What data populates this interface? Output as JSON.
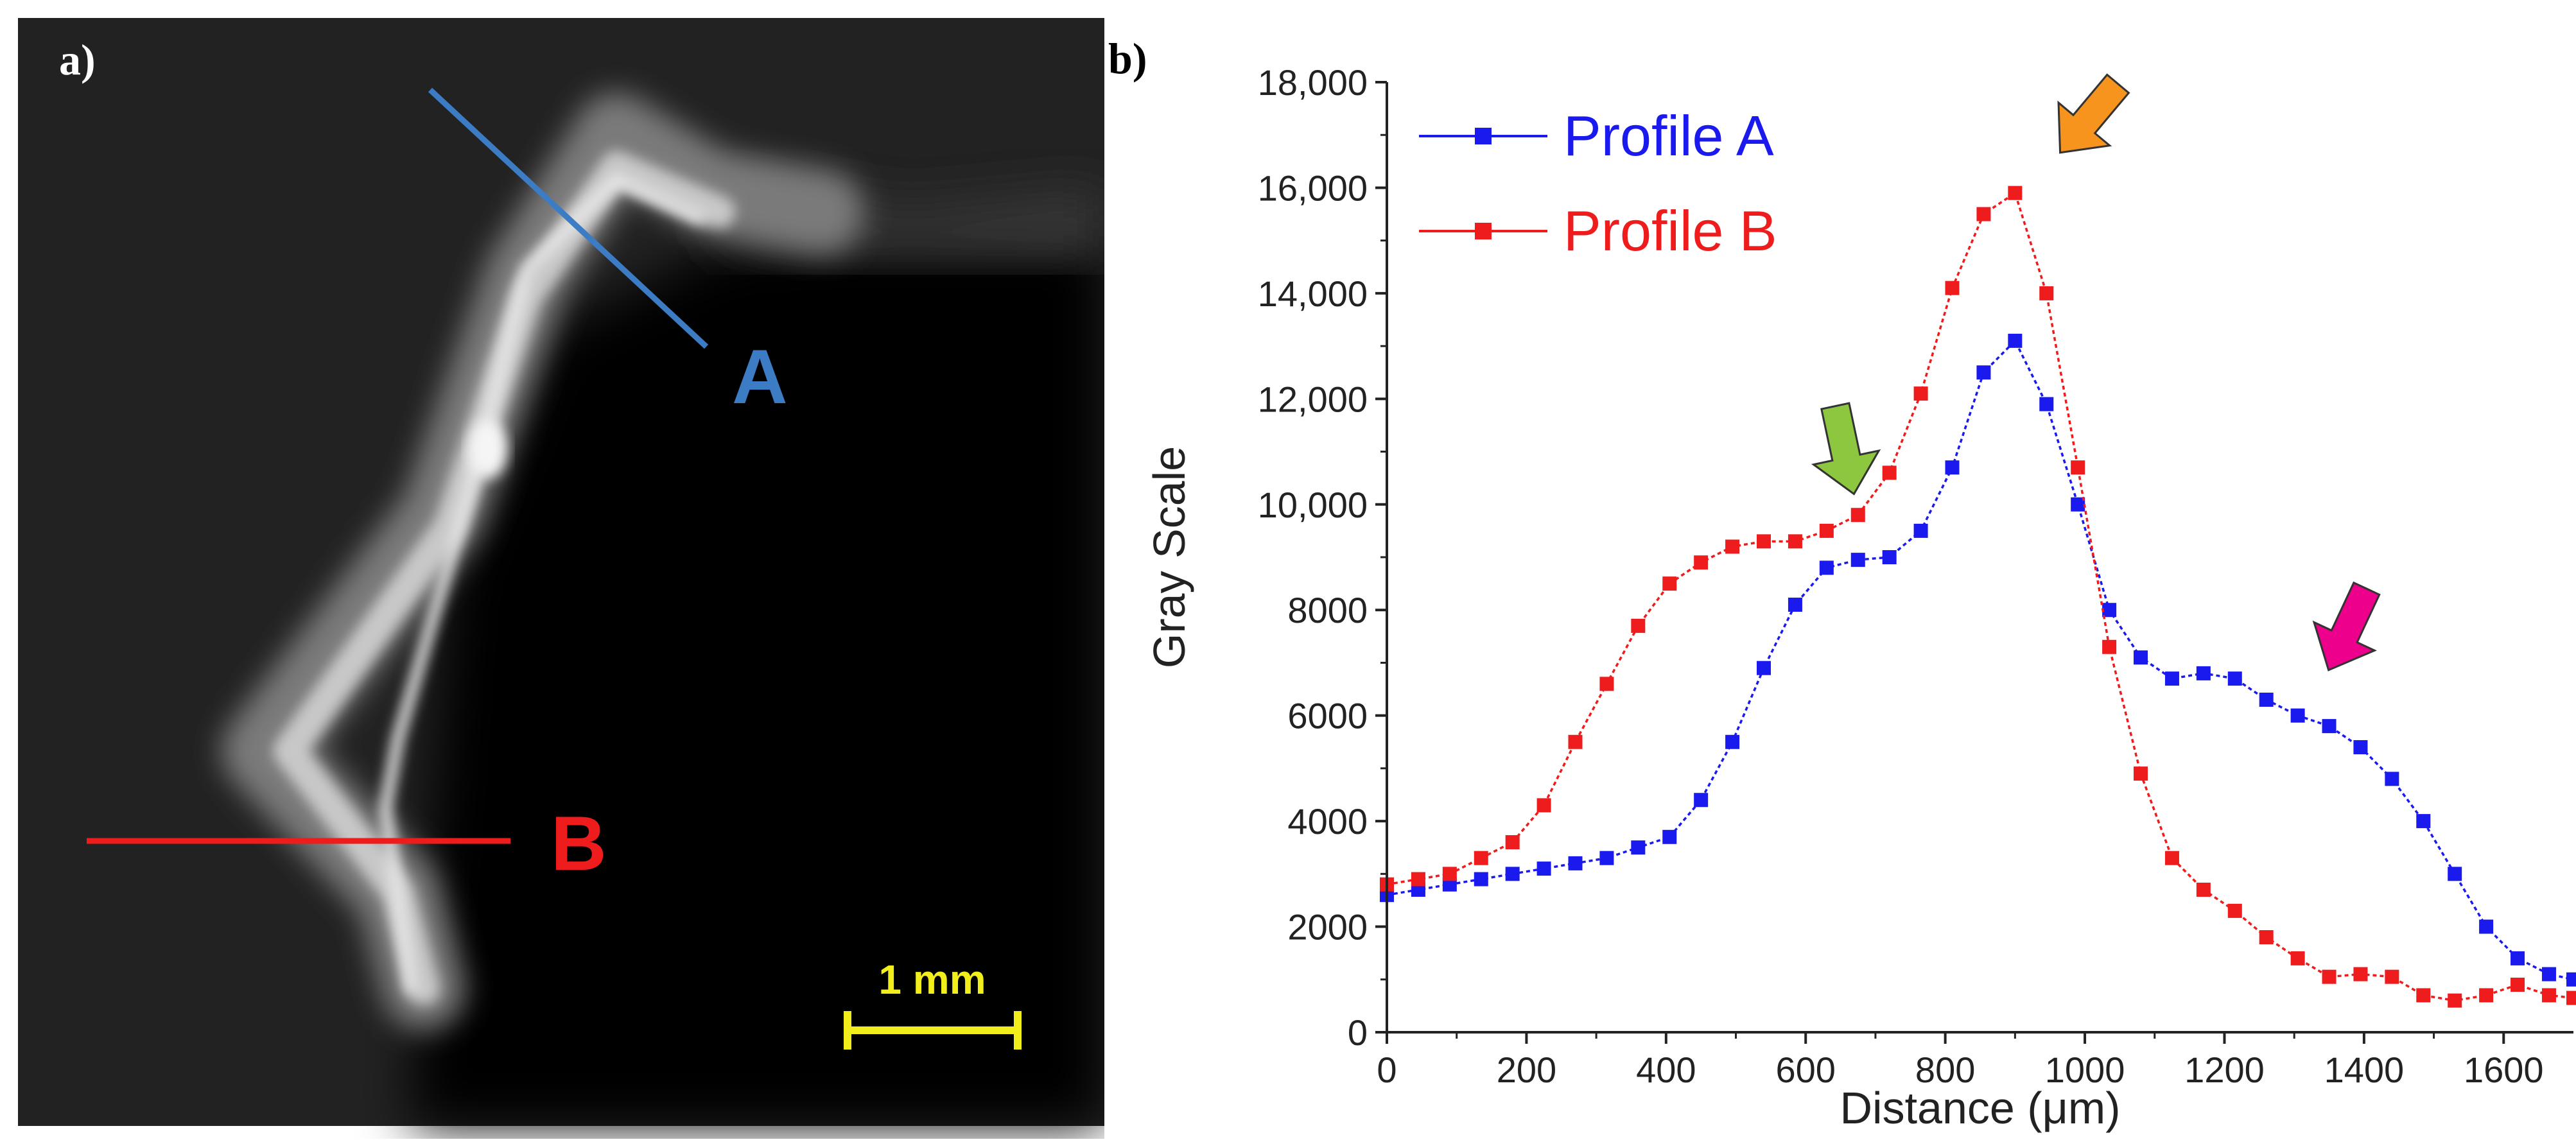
{
  "panel_a": {
    "label": "a)",
    "line_a_label": "A",
    "line_b_label": "B",
    "scale_bar_label": "1 mm",
    "colors": {
      "line_a": "#3b7cc4",
      "line_b": "#ee1c1c",
      "scale_bar": "#f2ee1c"
    }
  },
  "panel_b": {
    "label": "b)"
  },
  "chart_data": {
    "type": "line",
    "title": "",
    "xlabel": "Distance (μm)",
    "ylabel": "Gray Scale",
    "xlim": [
      0,
      1700
    ],
    "ylim": [
      0,
      18000
    ],
    "x_ticks": [
      0,
      200,
      400,
      600,
      800,
      1000,
      1200,
      1400,
      1600
    ],
    "x_tick_labels": [
      "0",
      "200",
      "400",
      "600",
      "800",
      "1000",
      "1200",
      "1400",
      "1600"
    ],
    "y_ticks": [
      0,
      2000,
      4000,
      6000,
      8000,
      10000,
      12000,
      14000,
      16000,
      18000
    ],
    "y_tick_labels": [
      "0",
      "2000",
      "4000",
      "6000",
      "8000",
      "10,000",
      "12,000",
      "14,000",
      "16,000",
      "18,000"
    ],
    "legend_position": "top-left",
    "series": [
      {
        "name": "Profile A",
        "color": "#1a1aee",
        "x": [
          0,
          45,
          90,
          135,
          180,
          225,
          270,
          315,
          360,
          405,
          450,
          495,
          540,
          585,
          630,
          675,
          720,
          765,
          810,
          855,
          900,
          945,
          990,
          1035,
          1080,
          1125,
          1170,
          1215,
          1260,
          1305,
          1350,
          1395,
          1440,
          1485,
          1530,
          1575,
          1620,
          1665,
          1700
        ],
        "values": [
          2600,
          2700,
          2800,
          2900,
          3000,
          3100,
          3200,
          3300,
          3500,
          3700,
          4400,
          5500,
          6900,
          8100,
          8800,
          8950,
          9000,
          9500,
          10700,
          12500,
          13100,
          11900,
          10000,
          8000,
          7100,
          6700,
          6800,
          6700,
          6300,
          6000,
          5800,
          5400,
          4800,
          4000,
          3000,
          2000,
          1400,
          1100,
          1000
        ]
      },
      {
        "name": "Profile B",
        "color": "#ee1c1c",
        "x": [
          0,
          45,
          90,
          135,
          180,
          225,
          270,
          315,
          360,
          405,
          450,
          495,
          540,
          585,
          630,
          675,
          720,
          765,
          810,
          855,
          900,
          945,
          990,
          1035,
          1080,
          1125,
          1170,
          1215,
          1260,
          1305,
          1350,
          1395,
          1440,
          1485,
          1530,
          1575,
          1620,
          1665,
          1700
        ],
        "values": [
          2800,
          2900,
          3000,
          3300,
          3600,
          4300,
          5500,
          6600,
          7700,
          8500,
          8900,
          9200,
          9300,
          9300,
          9500,
          9800,
          10600,
          12100,
          14100,
          15500,
          15900,
          14000,
          10700,
          7300,
          4900,
          3300,
          2700,
          2300,
          1800,
          1400,
          1050,
          1100,
          1050,
          700,
          600,
          700,
          900,
          700,
          650
        ]
      }
    ],
    "annotations": [
      {
        "type": "arrow",
        "color": "#8dc63f",
        "points_to_x": 660,
        "points_to_y": 10100
      },
      {
        "type": "arrow",
        "color": "#f7941d",
        "points_to_x": 960,
        "points_to_y": 16300
      },
      {
        "type": "arrow",
        "color": "#ec008c",
        "points_to_x": 1340,
        "points_to_y": 6800
      }
    ]
  }
}
